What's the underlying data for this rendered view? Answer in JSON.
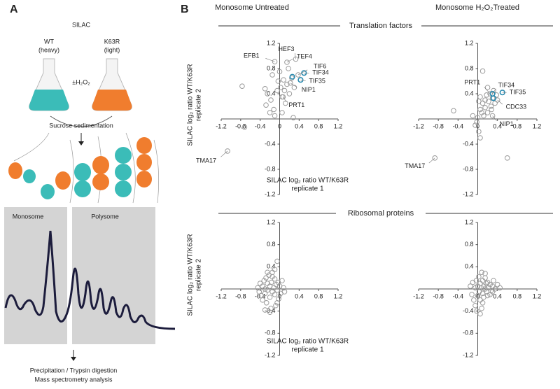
{
  "panel_a": {
    "label": "A",
    "title": "SILAC",
    "wt": "WT",
    "wt_note": "(heavy)",
    "mut": "K63R",
    "mut_note": "(light)",
    "treatment": "±H₂O₂",
    "step1": "Sucrose sedimentation",
    "monosome": "Monosome",
    "polysome": "Polysome",
    "step2": "Precipitation / Trypsin digestion",
    "step3": "Mass spectrometry analysis"
  },
  "panel_b": {
    "label": "B",
    "columns": [
      "Monosome Untreated",
      "Monosome H₂O₂Treated"
    ],
    "rows": [
      "Translation factors",
      "Ribosomal proteins"
    ]
  },
  "chart_data": [
    {
      "type": "scatter",
      "xlim": [
        -1.2,
        1.2
      ],
      "ylim": [
        -1.2,
        1.2
      ],
      "xticks": [
        -1.2,
        -0.8,
        -0.4,
        0,
        0.4,
        0.8,
        1.2
      ],
      "yticks": [
        -1.2,
        -0.8,
        -0.4,
        0.4,
        0.8,
        1.2
      ],
      "xlabel": [
        "SILAC log₂ ratio WT/K63R",
        "replicate 1"
      ],
      "ylabel": [
        "SILAC log₂ ratio WT/K63R",
        "replicate 2"
      ],
      "series": [
        {
          "color": "#9a9a9a",
          "x": [
            -1.07,
            -0.77,
            -0.72,
            -0.3,
            -0.25,
            -0.28,
            -0.2,
            -0.18,
            -0.12,
            -0.1,
            -0.05,
            -0.03,
            0,
            0.02,
            0.05,
            0.05,
            0.08,
            0.1,
            0.12,
            0.15,
            0.18,
            0.2,
            0.22,
            0.25,
            0.28,
            0.3,
            0.33,
            0.38,
            -0.1,
            0.07,
            0.15,
            -0.15
          ],
          "values": [
            -0.51,
            0.52,
            -0.13,
            0.48,
            0.4,
            0.22,
            0.1,
            0.3,
            0.15,
            0.05,
            0.45,
            0.6,
            0.75,
            0.5,
            0.35,
            0.1,
            0.62,
            0.45,
            0.25,
            0.55,
            0.8,
            0.4,
            0.57,
            0.65,
            0.02,
            0.5,
            0.95,
            0.7,
            0.91,
            0.35,
            0.9,
            0.7
          ]
        },
        {
          "color": "#2a8bb0",
          "x": [
            0.26,
            0.5,
            0.43
          ],
          "values": [
            0.67,
            0.73,
            0.62
          ]
        }
      ],
      "annotations": [
        {
          "text": "EFB1",
          "x": -0.1,
          "y": 0.91
        },
        {
          "text": "HEF3",
          "x": 0.33,
          "y": 0.95
        },
        {
          "text": "TEF4",
          "x": 0.15,
          "y": 0.9
        },
        {
          "text": "TIF6",
          "x": 0.38,
          "y": 0.7
        },
        {
          "text": "TIF34",
          "x": 0.5,
          "y": 0.73
        },
        {
          "text": "TIF35",
          "x": 0.43,
          "y": 0.62
        },
        {
          "text": "NIP1",
          "x": 0.22,
          "y": 0.57
        },
        {
          "text": "PRT1",
          "x": 0.07,
          "y": 0.35
        },
        {
          "text": "TMA17",
          "x": -1.07,
          "y": -0.51
        }
      ]
    },
    {
      "type": "scatter",
      "xlim": [
        -1.2,
        1.2
      ],
      "ylim": [
        -1.2,
        1.2
      ],
      "xticks": [
        -1.2,
        -0.8,
        -0.4,
        0,
        0.4,
        0.8,
        1.2
      ],
      "yticks": [
        -1.2,
        -0.8,
        -0.4,
        0.4,
        0.8,
        1.2
      ],
      "series": [
        {
          "color": "#9a9a9a",
          "x": [
            -0.87,
            -0.49,
            0.1,
            0.6,
            -0.1,
            -0.05,
            0,
            0.02,
            0.05,
            0.05,
            0.08,
            0.1,
            0.12,
            0.15,
            0.15,
            0.18,
            0.2,
            0.22,
            0.25,
            0.27,
            0.3,
            0.32,
            0.35,
            0.38,
            0.3,
            -0.02,
            0.05,
            0.2,
            0.28,
            0.02,
            0.4
          ],
          "values": [
            -0.62,
            0.13,
            0.76,
            -0.62,
            0.05,
            -0.1,
            0.02,
            -0.2,
            -0.3,
            0.15,
            0.1,
            0.25,
            0.05,
            0.3,
            0.18,
            0.38,
            0.1,
            0.28,
            0.4,
            0.2,
            0.33,
            0.45,
            0.25,
            0.38,
            0.05,
            -0.05,
            0.35,
            0.5,
            0.15,
            0.28,
            0.3
          ]
        },
        {
          "color": "#2a8bb0",
          "x": [
            0.3,
            0.32,
            0.5
          ],
          "values": [
            0.4,
            0.33,
            0.42
          ]
        }
      ],
      "annotations": [
        {
          "text": "PRT1",
          "x": 0.25,
          "y": 0.4
        },
        {
          "text": "TIF34",
          "x": 0.3,
          "y": 0.4
        },
        {
          "text": "TIF35",
          "x": 0.5,
          "y": 0.42
        },
        {
          "text": "CDC33",
          "x": 0.4,
          "y": 0.3
        },
        {
          "text": "NIP1",
          "x": 0.3,
          "y": 0.05
        },
        {
          "text": "TMA17",
          "x": -0.87,
          "y": -0.62
        }
      ]
    },
    {
      "type": "scatter",
      "xlim": [
        -1.2,
        1.2
      ],
      "ylim": [
        -1.2,
        1.2
      ],
      "xticks": [
        -1.2,
        -0.8,
        -0.4,
        0,
        0.4,
        0.8,
        1.2
      ],
      "yticks": [
        -1.2,
        -0.8,
        -0.4,
        0.4,
        0.8,
        1.2
      ],
      "xlabel": [
        "SILAC log₂ ratio WT/K63R",
        "replicate 1"
      ],
      "ylabel": [
        "SILAC log₂ ratio WT/K63R",
        "replicate 2"
      ],
      "series": [
        {
          "color": "#9a9a9a",
          "x": [
            -0.45,
            -0.42,
            -0.4,
            -0.38,
            -0.35,
            -0.35,
            -0.32,
            -0.3,
            -0.3,
            -0.28,
            -0.27,
            -0.25,
            -0.25,
            -0.22,
            -0.2,
            -0.2,
            -0.18,
            -0.17,
            -0.15,
            -0.15,
            -0.12,
            -0.1,
            -0.1,
            -0.08,
            -0.07,
            -0.05,
            -0.05,
            -0.03,
            -0.02,
            0,
            0.02,
            0.05,
            0.08,
            0.1,
            -0.2,
            -0.3,
            -0.1,
            -0.15,
            -0.25,
            -0.05
          ],
          "values": [
            0.02,
            -0.05,
            0.1,
            -0.12,
            0.05,
            -0.2,
            0.15,
            0,
            -0.08,
            0.2,
            -0.25,
            0.1,
            -0.02,
            0.25,
            0.05,
            -0.15,
            -0.35,
            0.12,
            0.3,
            -0.05,
            0.02,
            0.18,
            -0.1,
            -0.3,
            0.08,
            0.5,
            -0.02,
            0.12,
            -0.18,
            0.05,
            -0.08,
            0.15,
            0.02,
            -0.05,
            -0.42,
            -0.38,
            0.35,
            0.22,
            0.3,
            -0.25
          ]
        }
      ],
      "annotations": []
    },
    {
      "type": "scatter",
      "xlim": [
        -1.2,
        1.2
      ],
      "ylim": [
        -1.2,
        1.2
      ],
      "xticks": [
        -1.2,
        -0.8,
        -0.4,
        0,
        0.4,
        0.8,
        1.2
      ],
      "yticks": [
        -1.2,
        -0.8,
        -0.4,
        0.4,
        0.8,
        1.2
      ],
      "series": [
        {
          "color": "#9a9a9a",
          "x": [
            -0.15,
            -0.12,
            -0.1,
            -0.08,
            -0.05,
            -0.05,
            -0.03,
            0,
            0,
            0.02,
            0.03,
            0.05,
            0.05,
            0.07,
            0.08,
            0.1,
            0.1,
            0.12,
            0.12,
            0.15,
            0.15,
            0.17,
            0.18,
            0.2,
            0.2,
            0.22,
            0.25,
            0.27,
            0.3,
            0.32,
            0.35,
            0.4,
            0.45,
            0.05,
            0.1,
            -0.02,
            0.15,
            0.25,
            0.08,
            0.3
          ],
          "values": [
            0.05,
            -0.1,
            0.12,
            -0.2,
            0.02,
            -0.3,
            0.15,
            0.05,
            -0.12,
            0.22,
            -0.05,
            0.1,
            -0.2,
            0.02,
            -0.35,
            0.15,
            -0.08,
            0.05,
            -0.15,
            0.28,
            0,
            0.1,
            -0.05,
            0.12,
            -0.12,
            0.02,
            0.08,
            -0.03,
            0.05,
            0.15,
            0,
            0.08,
            0.02,
            -0.45,
            -0.25,
            -0.4,
            0.2,
            -0.1,
            0.3,
            -0.05
          ]
        }
      ],
      "annotations": []
    }
  ]
}
